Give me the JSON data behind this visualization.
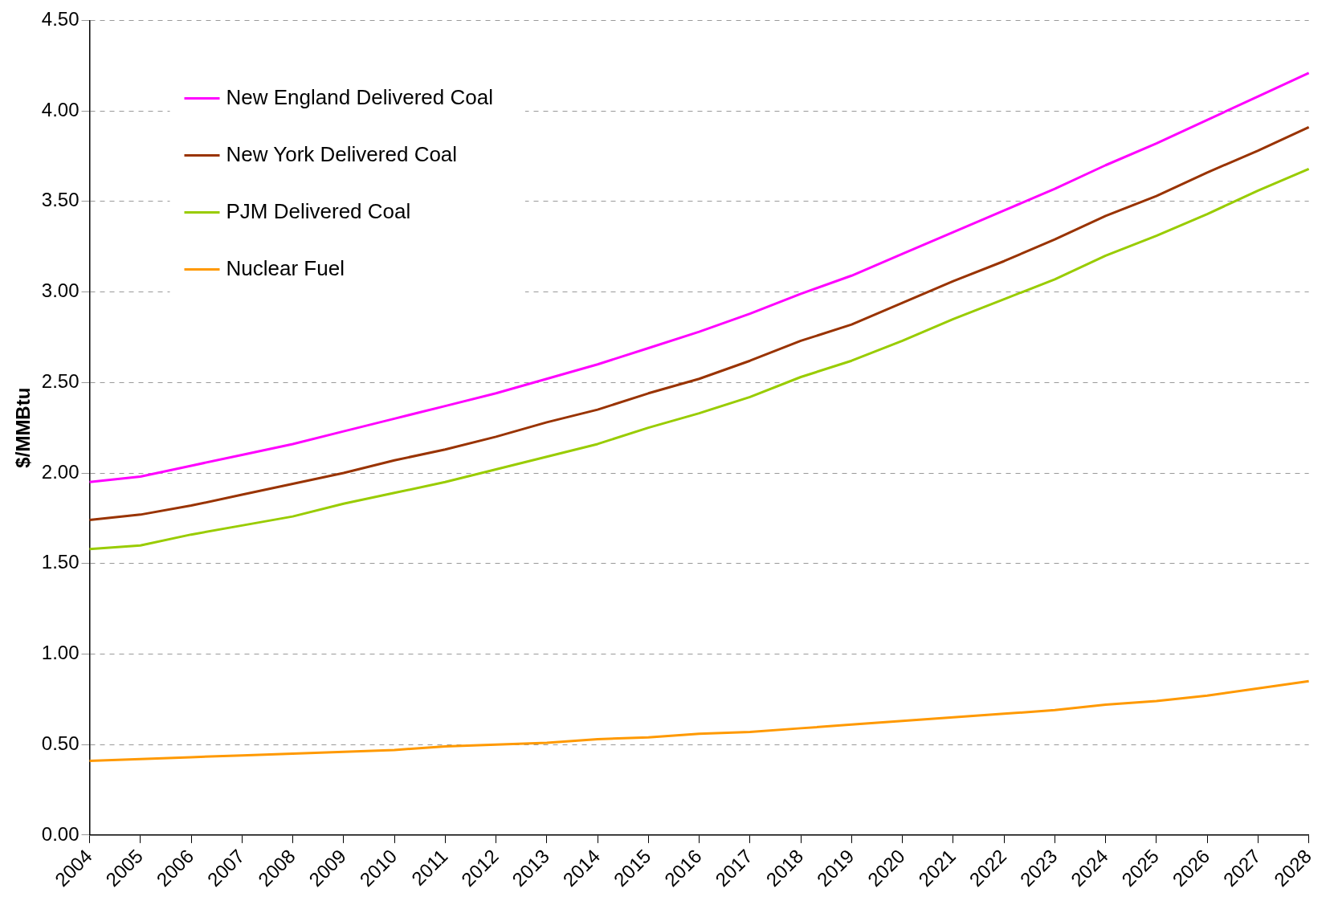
{
  "chart_data": {
    "type": "line",
    "ylabel": "$/MMBtu",
    "categories": [
      "2004",
      "2005",
      "2006",
      "2007",
      "2008",
      "2009",
      "2010",
      "2011",
      "2012",
      "2013",
      "2014",
      "2015",
      "2016",
      "2017",
      "2018",
      "2019",
      "2020",
      "2021",
      "2022",
      "2023",
      "2024",
      "2025",
      "2026",
      "2027",
      "2028"
    ],
    "series": [
      {
        "name": "New England Delivered Coal",
        "color": "#ff00ff",
        "values": [
          1.95,
          1.98,
          2.04,
          2.1,
          2.16,
          2.23,
          2.3,
          2.37,
          2.44,
          2.52,
          2.6,
          2.69,
          2.78,
          2.88,
          2.99,
          3.09,
          3.21,
          3.33,
          3.45,
          3.57,
          3.7,
          3.82,
          3.95,
          4.08,
          4.21
        ]
      },
      {
        "name": "New York Delivered Coal",
        "color": "#993300",
        "values": [
          1.74,
          1.77,
          1.82,
          1.88,
          1.94,
          2.0,
          2.07,
          2.13,
          2.2,
          2.28,
          2.35,
          2.44,
          2.52,
          2.62,
          2.73,
          2.82,
          2.94,
          3.06,
          3.17,
          3.29,
          3.42,
          3.53,
          3.66,
          3.78,
          3.91
        ]
      },
      {
        "name": "PJM Delivered Coal",
        "color": "#99cc00",
        "values": [
          1.58,
          1.6,
          1.66,
          1.71,
          1.76,
          1.83,
          1.89,
          1.95,
          2.02,
          2.09,
          2.16,
          2.25,
          2.33,
          2.42,
          2.53,
          2.62,
          2.73,
          2.85,
          2.96,
          3.07,
          3.2,
          3.31,
          3.43,
          3.56,
          3.68
        ]
      },
      {
        "name": "Nuclear Fuel",
        "color": "#ff9900",
        "values": [
          0.41,
          0.42,
          0.43,
          0.44,
          0.45,
          0.46,
          0.47,
          0.49,
          0.5,
          0.51,
          0.53,
          0.54,
          0.56,
          0.57,
          0.59,
          0.61,
          0.63,
          0.65,
          0.67,
          0.69,
          0.72,
          0.74,
          0.77,
          0.81,
          0.85
        ]
      }
    ],
    "ylim": [
      0,
      4.5
    ],
    "yticks": [
      {
        "value": 0,
        "label": "0.00"
      },
      {
        "value": 0.5,
        "label": "0.50"
      },
      {
        "value": 1,
        "label": "1.00"
      },
      {
        "value": 1.5,
        "label": "1.50"
      },
      {
        "value": 2,
        "label": "2.00"
      },
      {
        "value": 2.5,
        "label": "2.50"
      },
      {
        "value": 3,
        "label": "3.00"
      },
      {
        "value": 3.5,
        "label": "3.50"
      },
      {
        "value": 4,
        "label": "4.00"
      },
      {
        "value": 4.5,
        "label": "4.50"
      }
    ],
    "grid": "y",
    "legend": "top left",
    "marker": "none",
    "line_style": "solid"
  }
}
